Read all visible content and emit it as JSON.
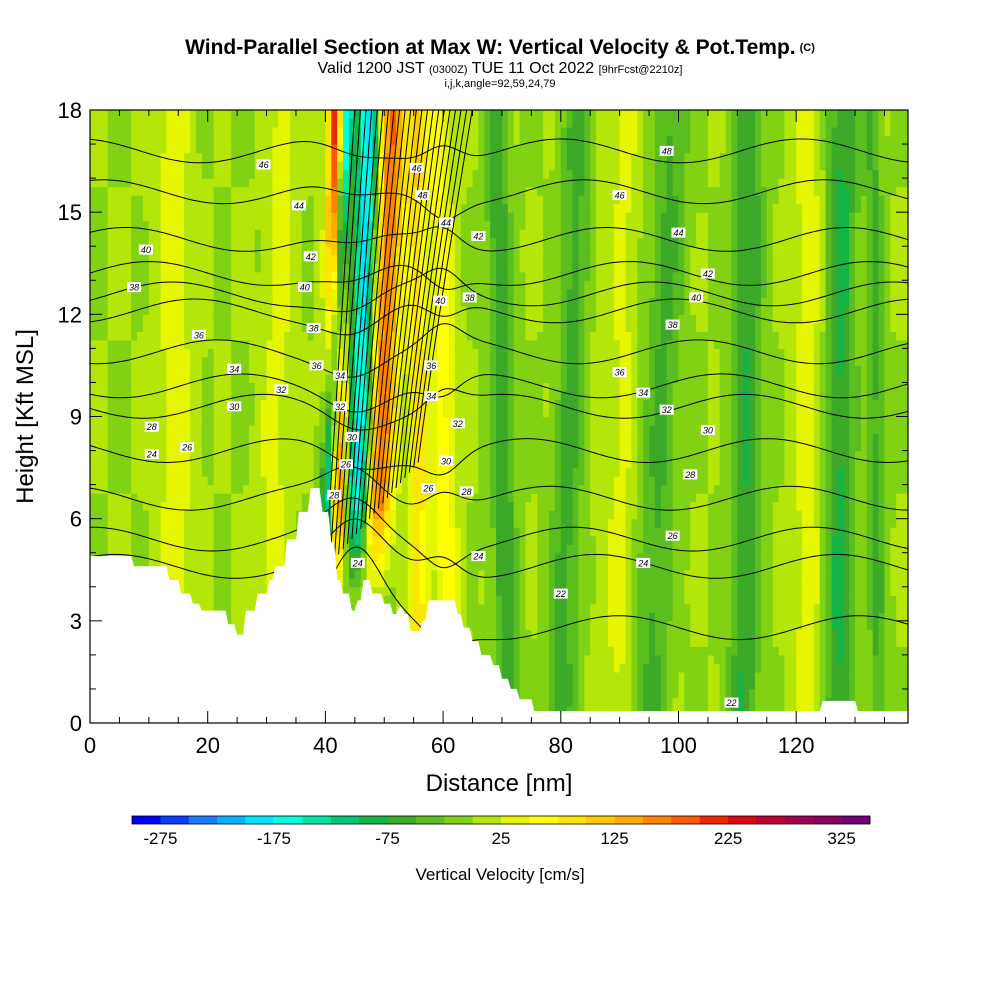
{
  "title": {
    "main": "Wind-Parallel Section at Max W: Vertical Velocity & Pot.Temp.",
    "copyright": "(C)",
    "valid_prefix": "Valid 1200 JST",
    "valid_utc": "(0300Z)",
    "valid_date": "TUE 11 Oct 2022",
    "forecast": "[9hrFcst@2210z]",
    "indices": "i,j,k,angle=92,59,24,79"
  },
  "chart_data": {
    "type": "heatmap",
    "xlabel": "Distance [nm]",
    "ylabel": "Height [Kft MSL]",
    "xlim": [
      0,
      139
    ],
    "ylim": [
      0,
      18
    ],
    "x_ticks": [
      0,
      20,
      40,
      60,
      80,
      100,
      120
    ],
    "y_ticks": [
      0,
      3,
      6,
      9,
      12,
      15,
      18
    ],
    "grid": false,
    "colorbar": {
      "label": "Vertical Velocity [cm/s]",
      "tick_labels": [
        "-275",
        "-175",
        "-75",
        "25",
        "125",
        "225",
        "325"
      ],
      "bins": [
        {
          "from": -300,
          "to": -275,
          "color": "#0000ff"
        },
        {
          "from": -275,
          "to": -250,
          "color": "#0a3cff"
        },
        {
          "from": -250,
          "to": -225,
          "color": "#1e78ff"
        },
        {
          "from": -225,
          "to": -200,
          "color": "#00b4ff"
        },
        {
          "from": -200,
          "to": -175,
          "color": "#00e6ff"
        },
        {
          "from": -175,
          "to": -150,
          "color": "#00ffe0"
        },
        {
          "from": -150,
          "to": -125,
          "color": "#00e6a0"
        },
        {
          "from": -125,
          "to": -100,
          "color": "#00c878"
        },
        {
          "from": -100,
          "to": -75,
          "color": "#14b446"
        },
        {
          "from": -75,
          "to": -50,
          "color": "#3caa28"
        },
        {
          "from": -50,
          "to": -25,
          "color": "#5abe1e"
        },
        {
          "from": -25,
          "to": 0,
          "color": "#82d214"
        },
        {
          "from": 0,
          "to": 25,
          "color": "#b4e60a"
        },
        {
          "from": 25,
          "to": 50,
          "color": "#e6f500"
        },
        {
          "from": 50,
          "to": 75,
          "color": "#ffff00"
        },
        {
          "from": 75,
          "to": 100,
          "color": "#ffe600"
        },
        {
          "from": 100,
          "to": 125,
          "color": "#ffc800"
        },
        {
          "from": 125,
          "to": 150,
          "color": "#ffaa00"
        },
        {
          "from": 150,
          "to": 175,
          "color": "#ff8200"
        },
        {
          "from": 175,
          "to": 200,
          "color": "#ff5a00"
        },
        {
          "from": 200,
          "to": 225,
          "color": "#f02800"
        },
        {
          "from": 225,
          "to": 250,
          "color": "#dc0a14"
        },
        {
          "from": 250,
          "to": 275,
          "color": "#be0032"
        },
        {
          "from": 275,
          "to": 300,
          "color": "#a00050"
        },
        {
          "from": 300,
          "to": 325,
          "color": "#8c0064"
        },
        {
          "from": 325,
          "to": 350,
          "color": "#6e0078"
        }
      ]
    },
    "vertical_velocity_bands": [
      {
        "x_surface": 39.0,
        "x_top": 43.5,
        "halfwidth": 1.2,
        "value": -270
      },
      {
        "x_surface": 41.5,
        "x_top": 42.0,
        "halfwidth": 1.5,
        "value": 260
      },
      {
        "x_surface": 44.5,
        "x_top": 47.5,
        "halfwidth": 2.0,
        "value": -200
      },
      {
        "x_surface": 47.5,
        "x_top": 51.5,
        "halfwidth": 2.5,
        "value": 175
      },
      {
        "x_surface": 56.0,
        "x_top": 55.5,
        "halfwidth": 1.5,
        "value": 90
      },
      {
        "x_surface": 61.0,
        "x_top": 59.0,
        "halfwidth": 2.2,
        "value": 60
      },
      {
        "x_surface": 71.0,
        "x_top": 69.0,
        "halfwidth": 2.0,
        "value": -70
      },
      {
        "x_surface": 80.0,
        "x_top": 83.0,
        "halfwidth": 2.5,
        "value": -60
      },
      {
        "x_surface": 95.0,
        "x_top": 99.0,
        "halfwidth": 3.0,
        "value": -55
      },
      {
        "x_surface": 111.0,
        "x_top": 112.0,
        "halfwidth": 2.5,
        "value": -75
      },
      {
        "x_surface": 127.0,
        "x_top": 128.0,
        "halfwidth": 2.5,
        "value": -80
      },
      {
        "x_surface": 134.0,
        "x_top": 133.0,
        "halfwidth": 1.5,
        "value": -55
      },
      {
        "x_surface": 15.0,
        "x_top": 14.0,
        "halfwidth": 3.0,
        "value": 40
      },
      {
        "x_surface": 30.0,
        "x_top": 33.0,
        "halfwidth": 2.5,
        "value": 35
      },
      {
        "x_surface": 90.0,
        "x_top": 91.0,
        "halfwidth": 2.5,
        "value": 30
      },
      {
        "x_surface": 122.0,
        "x_top": 122.0,
        "halfwidth": 2.5,
        "value": 40
      },
      {
        "x_surface": 87.0,
        "x_top": 86.0,
        "halfwidth": 2.0,
        "value": 10
      }
    ],
    "terrain": [
      [
        0,
        4.9
      ],
      [
        7,
        4.9
      ],
      [
        7.5,
        4.6
      ],
      [
        13,
        4.6
      ],
      [
        13.5,
        4.2
      ],
      [
        15,
        4.2
      ],
      [
        15.5,
        3.8
      ],
      [
        17,
        3.8
      ],
      [
        17.5,
        3.5
      ],
      [
        18.5,
        3.5
      ],
      [
        19,
        3.3
      ],
      [
        23,
        3.3
      ],
      [
        23.5,
        2.9
      ],
      [
        24.5,
        2.9
      ],
      [
        25,
        2.6
      ],
      [
        26,
        2.6
      ],
      [
        26.5,
        3.3
      ],
      [
        28,
        3.3
      ],
      [
        28.5,
        3.8
      ],
      [
        30,
        3.8
      ],
      [
        30.5,
        4.2
      ],
      [
        31,
        4.2
      ],
      [
        31.5,
        4.6
      ],
      [
        33,
        4.6
      ],
      [
        33.5,
        5.4
      ],
      [
        35,
        5.4
      ],
      [
        35.5,
        6.2
      ],
      [
        37,
        6.2
      ],
      [
        37.5,
        6.9
      ],
      [
        39,
        6.9
      ],
      [
        39.5,
        6.2
      ],
      [
        40.5,
        6.2
      ],
      [
        41,
        5.3
      ],
      [
        41.5,
        5.3
      ],
      [
        42,
        4.2
      ],
      [
        42.5,
        4.2
      ],
      [
        43,
        3.8
      ],
      [
        44,
        3.8
      ],
      [
        44.5,
        3.3
      ],
      [
        45,
        3.3
      ],
      [
        45.5,
        3.6
      ],
      [
        46,
        3.6
      ],
      [
        46.5,
        4.2
      ],
      [
        47.5,
        4.2
      ],
      [
        48,
        3.8
      ],
      [
        49.5,
        3.8
      ],
      [
        50,
        3.5
      ],
      [
        51,
        3.5
      ],
      [
        51.5,
        3.2
      ],
      [
        52,
        3.2
      ],
      [
        52.5,
        3.4
      ],
      [
        53,
        3.4
      ],
      [
        53.5,
        3.2
      ],
      [
        54,
        3.2
      ],
      [
        54.5,
        2.7
      ],
      [
        56,
        2.7
      ],
      [
        56.5,
        3.0
      ],
      [
        57,
        3.0
      ],
      [
        57.5,
        3.6
      ],
      [
        59,
        3.6
      ],
      [
        62,
        3.6
      ],
      [
        62.5,
        3.2
      ],
      [
        63,
        3.2
      ],
      [
        63.5,
        2.8
      ],
      [
        64.5,
        2.8
      ],
      [
        65,
        2.4
      ],
      [
        66,
        2.4
      ],
      [
        66.5,
        2.0
      ],
      [
        68,
        2.0
      ],
      [
        68.5,
        1.7
      ],
      [
        69.5,
        1.7
      ],
      [
        70,
        1.3
      ],
      [
        71,
        1.3
      ],
      [
        71.5,
        1.0
      ],
      [
        72.5,
        1.0
      ],
      [
        73,
        0.7
      ],
      [
        75,
        0.7
      ],
      [
        75.5,
        0.35
      ],
      [
        124,
        0.35
      ],
      [
        124.5,
        0.65
      ],
      [
        130,
        0.65
      ],
      [
        130.5,
        0.35
      ],
      [
        139,
        0.35
      ]
    ],
    "theta_contours": [
      {
        "level": 22,
        "h0": 2.8,
        "dh": 1.6,
        "label_x": 80,
        "label_y": 3.8
      },
      {
        "level": 24,
        "h0": 4.6,
        "dh": 0.8,
        "label_x": 94,
        "label_y": 4.7
      },
      {
        "level": 26,
        "h0": 5.4,
        "dh": 0.7,
        "label_x": 99,
        "label_y": 5.5
      },
      {
        "level": 28,
        "h0": 6.6,
        "dh": 0.6,
        "label_x": 102,
        "label_y": 7.3
      },
      {
        "level": 30,
        "h0": 8.0,
        "dh": 0.6,
        "label_x": 105,
        "label_y": 8.6
      },
      {
        "level": 32,
        "h0": 9.3,
        "dh": 0.6,
        "label_x": 98,
        "label_y": 9.2
      },
      {
        "level": 34,
        "h0": 9.9,
        "dh": 0.6,
        "label_x": 94,
        "label_y": 9.7
      },
      {
        "level": 36,
        "h0": 10.9,
        "dh": 0.6,
        "label_x": 90,
        "label_y": 10.3
      },
      {
        "level": 38,
        "h0": 12.1,
        "dh": 0.7,
        "label_x": 99,
        "label_y": 11.7
      },
      {
        "level": 40,
        "h0": 12.6,
        "dh": 0.7,
        "label_x": 103,
        "label_y": 12.5
      },
      {
        "level": 42,
        "h0": 13.2,
        "dh": 0.6,
        "label_x": 105,
        "label_y": 13.2
      },
      {
        "level": 44,
        "h0": 14.2,
        "dh": 0.6,
        "label_x": 100,
        "label_y": 14.4
      },
      {
        "level": 46,
        "h0": 15.6,
        "dh": 0.6,
        "label_x": 90,
        "label_y": 15.5
      },
      {
        "level": 48,
        "h0": 16.8,
        "dh": 0.5,
        "label_x": 98,
        "label_y": 16.8
      }
    ],
    "contour_labels": [
      {
        "text": "46",
        "x": 29.5,
        "y": 16.4
      },
      {
        "text": "44",
        "x": 35.5,
        "y": 15.2
      },
      {
        "text": "40",
        "x": 9.5,
        "y": 13.9
      },
      {
        "text": "38",
        "x": 7.5,
        "y": 12.8
      },
      {
        "text": "36",
        "x": 18.5,
        "y": 11.4
      },
      {
        "text": "34",
        "x": 24.5,
        "y": 10.4
      },
      {
        "text": "32",
        "x": 32.5,
        "y": 9.8
      },
      {
        "text": "30",
        "x": 24.5,
        "y": 9.3
      },
      {
        "text": "28",
        "x": 10.5,
        "y": 8.7
      },
      {
        "text": "26",
        "x": 16.5,
        "y": 8.1
      },
      {
        "text": "24",
        "x": 10.5,
        "y": 7.9
      },
      {
        "text": "42",
        "x": 37.5,
        "y": 13.7
      },
      {
        "text": "40",
        "x": 36.5,
        "y": 12.8
      },
      {
        "text": "38",
        "x": 38.0,
        "y": 11.6
      },
      {
        "text": "36",
        "x": 38.5,
        "y": 10.5
      },
      {
        "text": "34",
        "x": 42.5,
        "y": 10.2
      },
      {
        "text": "32",
        "x": 42.5,
        "y": 9.3
      },
      {
        "text": "30",
        "x": 44.5,
        "y": 8.4
      },
      {
        "text": "26",
        "x": 43.5,
        "y": 7.6
      },
      {
        "text": "28",
        "x": 41.5,
        "y": 6.7
      },
      {
        "text": "24",
        "x": 45.5,
        "y": 4.7
      },
      {
        "text": "46",
        "x": 55.5,
        "y": 16.3
      },
      {
        "text": "48",
        "x": 56.5,
        "y": 15.5
      },
      {
        "text": "44",
        "x": 60.5,
        "y": 14.7
      },
      {
        "text": "42",
        "x": 66.0,
        "y": 14.3
      },
      {
        "text": "40",
        "x": 59.5,
        "y": 12.4
      },
      {
        "text": "38",
        "x": 64.5,
        "y": 12.5
      },
      {
        "text": "36",
        "x": 58.0,
        "y": 10.5
      },
      {
        "text": "34",
        "x": 58.0,
        "y": 9.6
      },
      {
        "text": "32",
        "x": 62.5,
        "y": 8.8
      },
      {
        "text": "30",
        "x": 60.5,
        "y": 7.7
      },
      {
        "text": "26",
        "x": 57.5,
        "y": 6.9
      },
      {
        "text": "28",
        "x": 64.0,
        "y": 6.8
      },
      {
        "text": "24",
        "x": 66.0,
        "y": 4.9
      },
      {
        "text": "22",
        "x": 80.0,
        "y": 3.8
      },
      {
        "text": "24",
        "x": 94.0,
        "y": 4.7
      },
      {
        "text": "26",
        "x": 99.0,
        "y": 5.5
      },
      {
        "text": "28",
        "x": 102.0,
        "y": 7.3
      },
      {
        "text": "30",
        "x": 105.0,
        "y": 8.6
      },
      {
        "text": "32",
        "x": 98.0,
        "y": 9.2
      },
      {
        "text": "34",
        "x": 94.0,
        "y": 9.7
      },
      {
        "text": "36",
        "x": 90.0,
        "y": 10.3
      },
      {
        "text": "38",
        "x": 99.0,
        "y": 11.7
      },
      {
        "text": "40",
        "x": 103.0,
        "y": 12.5
      },
      {
        "text": "42",
        "x": 105.0,
        "y": 13.2
      },
      {
        "text": "44",
        "x": 100.0,
        "y": 14.4
      },
      {
        "text": "46",
        "x": 90.0,
        "y": 15.5
      },
      {
        "text": "48",
        "x": 98.0,
        "y": 16.8
      },
      {
        "text": "22",
        "x": 109.0,
        "y": 0.6
      }
    ]
  }
}
